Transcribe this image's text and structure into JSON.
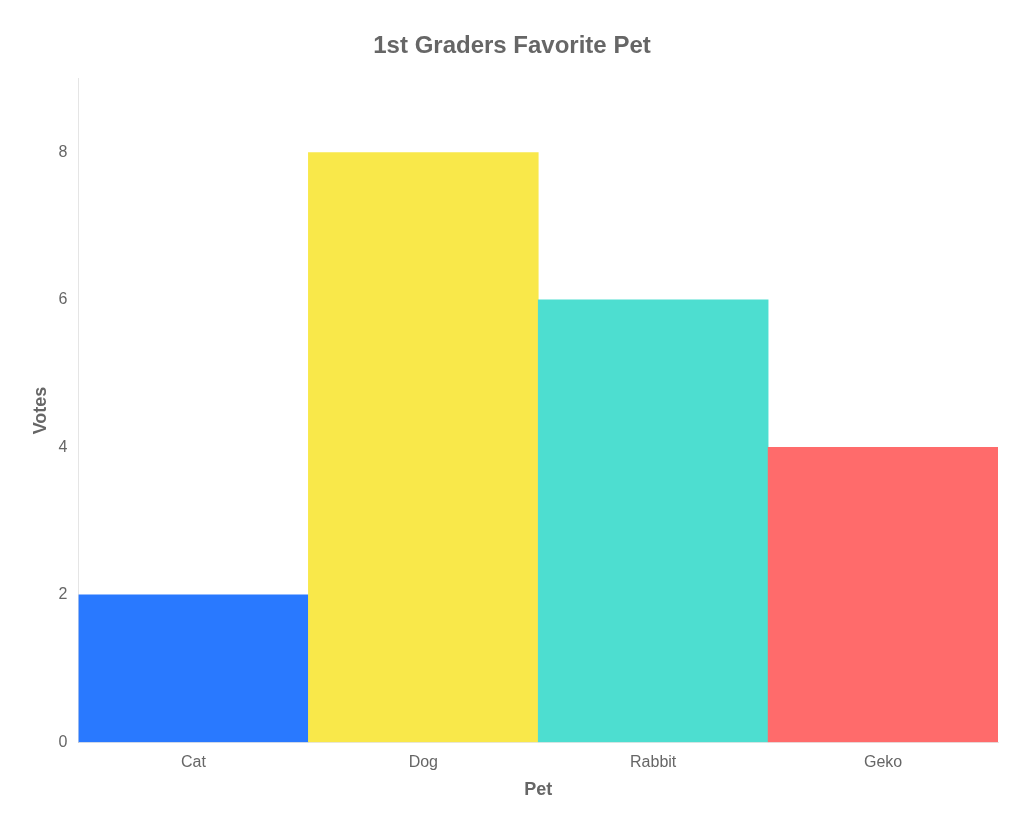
{
  "chart_data": {
    "type": "bar",
    "title": "1st Graders Favorite Pet",
    "xlabel": "Pet",
    "ylabel": "Votes",
    "categories": [
      "Cat",
      "Dog",
      "Rabbit",
      "Geko"
    ],
    "values": [
      2,
      8,
      6,
      4
    ],
    "colors": [
      "#2979FF",
      "#F9E84A",
      "#4DDED0",
      "#FF6B6B"
    ],
    "ylim": [
      0,
      9
    ],
    "yticks": [
      0,
      2,
      4,
      6,
      8
    ],
    "grid": false
  }
}
